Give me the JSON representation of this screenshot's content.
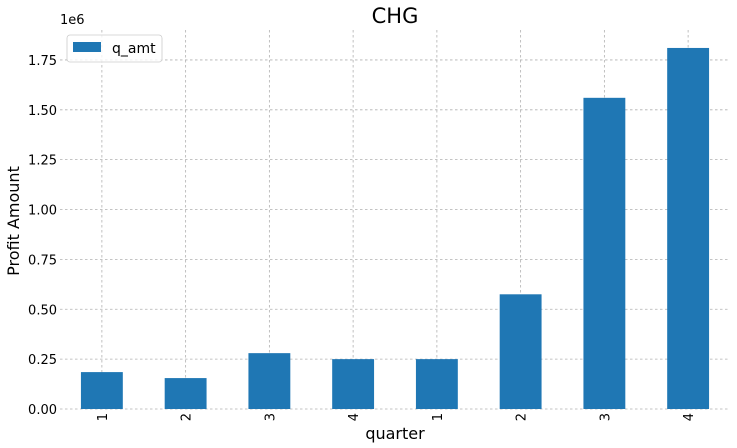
{
  "chart_data": {
    "type": "bar",
    "title": "CHG",
    "xlabel": "quarter",
    "ylabel": "Profit Amount",
    "scale_label": "1e6",
    "categories": [
      "1",
      "2",
      "3",
      "4",
      "1",
      "2",
      "3",
      "4"
    ],
    "series": [
      {
        "name": "q_amt",
        "color": "#1f77b4",
        "values": [
          185000,
          155000,
          280000,
          250000,
          250000,
          575000,
          1560000,
          1810000
        ]
      }
    ],
    "ylim": [
      0,
      1900000
    ],
    "yticks": [
      0,
      250000,
      500000,
      750000,
      1000000,
      1250000,
      1500000,
      1750000
    ],
    "ytick_labels": [
      "0.00",
      "0.25",
      "0.50",
      "0.75",
      "1.00",
      "1.25",
      "1.50",
      "1.75"
    ],
    "grid": true,
    "legend_position": "top-left"
  }
}
